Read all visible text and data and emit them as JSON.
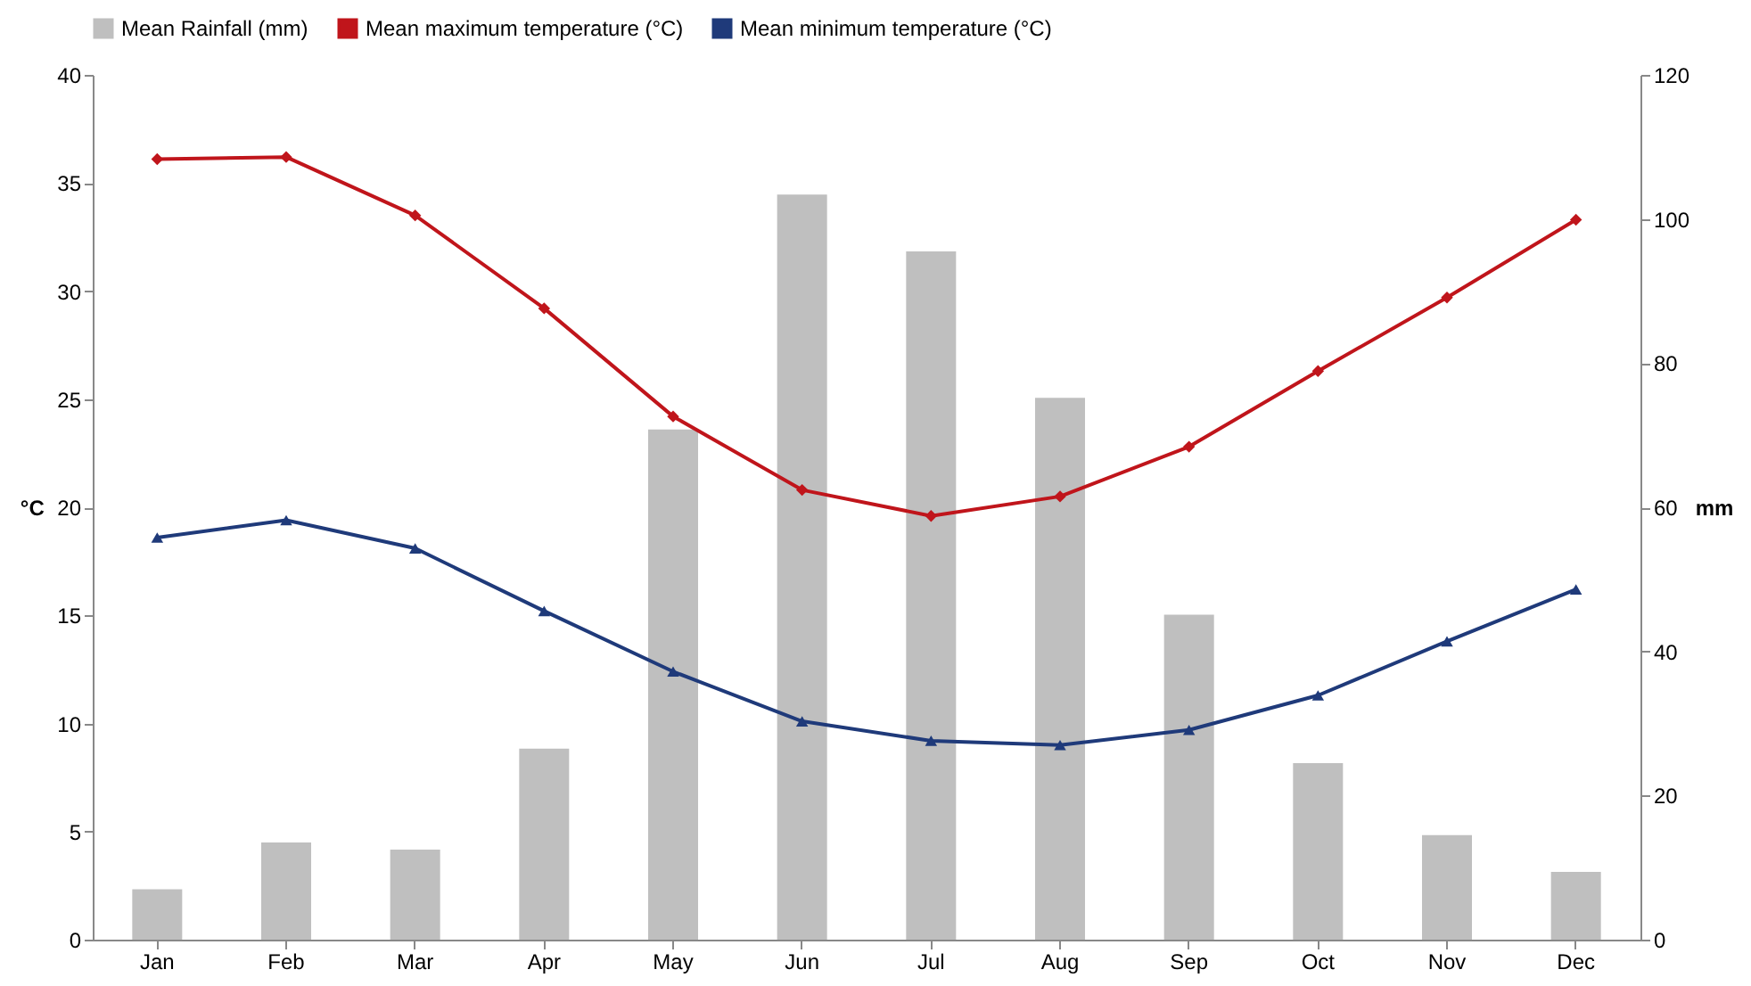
{
  "chart_data": {
    "type": "bar",
    "categories": [
      "Jan",
      "Feb",
      "Mar",
      "Apr",
      "May",
      "Jun",
      "Jul",
      "Aug",
      "Sep",
      "Oct",
      "Nov",
      "Dec"
    ],
    "series": [
      {
        "name": "Mean Rainfall  (mm)",
        "axis": "y2",
        "color": "#bfbfbf",
        "values": [
          7,
          13.5,
          12.5,
          26.5,
          70.8,
          103.4,
          95.5,
          75.2,
          45.1,
          24.5,
          14.5,
          9.4
        ]
      },
      {
        "name": "Mean maximum  temperature (°C)",
        "type": "line",
        "color": "#c0151b",
        "marker": "diamond",
        "values": [
          36.1,
          36.2,
          33.5,
          29.2,
          24.2,
          20.8,
          19.6,
          20.5,
          22.8,
          26.3,
          29.7,
          33.3
        ]
      },
      {
        "name": "Mean minimum  temperature (°C)",
        "type": "line",
        "color": "#1f3a7a",
        "marker": "triangle",
        "values": [
          18.6,
          19.4,
          18.1,
          15.2,
          12.4,
          10.1,
          9.2,
          9.0,
          9.7,
          11.3,
          13.8,
          16.2
        ]
      }
    ],
    "ylabel": "°C",
    "y2label": "mm",
    "ylim": [
      0,
      40
    ],
    "yticks": [
      0,
      5,
      10,
      15,
      20,
      25,
      30,
      35,
      40
    ],
    "y2lim": [
      0,
      120
    ],
    "y2ticks": [
      0,
      20,
      40,
      60,
      80,
      100,
      120
    ],
    "legend": "top",
    "grid": false,
    "line_style": "solid"
  }
}
